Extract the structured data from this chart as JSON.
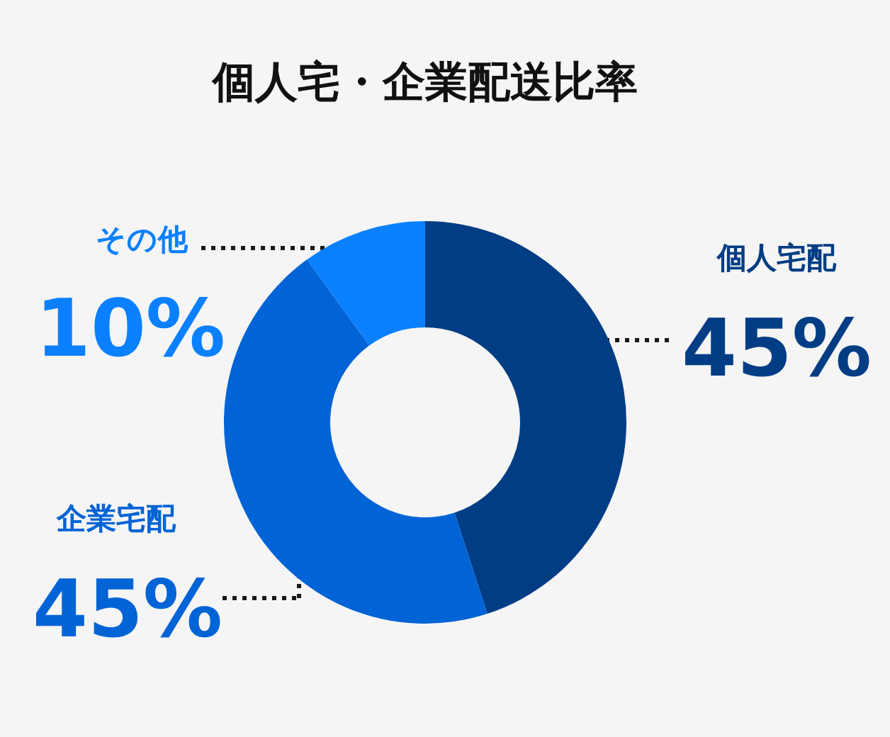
{
  "chart_data": {
    "type": "donut",
    "title": "個人宅・企業配送比率",
    "categories": [
      "個人宅配",
      "企業宅配",
      "その他"
    ],
    "values": [
      45,
      45,
      10
    ],
    "colors": [
      "#003d84",
      "#0063d6",
      "#0a80ff"
    ],
    "value_labels": [
      "45%",
      "45%",
      "10%"
    ]
  }
}
